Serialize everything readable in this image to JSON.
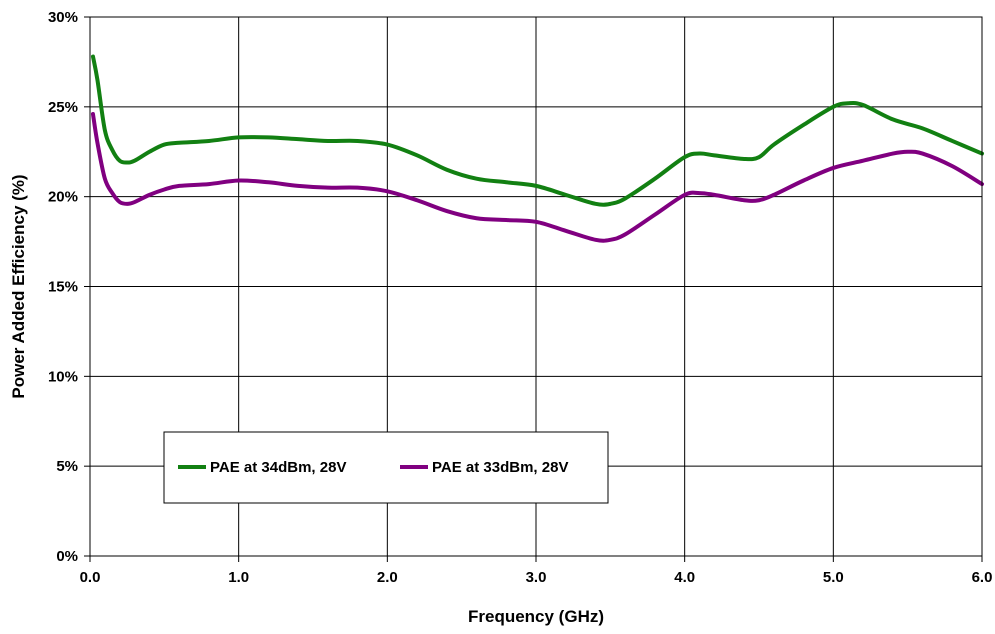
{
  "chart_data": {
    "type": "line",
    "xlabel": "Frequency (GHz)",
    "ylabel": "Power Added Efficiency (%)",
    "xlim": [
      0,
      6
    ],
    "ylim": [
      0,
      30
    ],
    "x_ticks": [
      "0.0",
      "1.0",
      "2.0",
      "3.0",
      "4.0",
      "5.0",
      "6.0"
    ],
    "y_ticks": [
      "0%",
      "5%",
      "10%",
      "15%",
      "20%",
      "25%",
      "30%"
    ],
    "grid": true,
    "legend_position": "lower-left",
    "series": [
      {
        "name": "PAE at 34dBm, 28V",
        "color": "#128012",
        "x": [
          0.02,
          0.05,
          0.1,
          0.15,
          0.2,
          0.25,
          0.3,
          0.4,
          0.5,
          0.6,
          0.8,
          1.0,
          1.2,
          1.4,
          1.6,
          1.8,
          2.0,
          2.2,
          2.4,
          2.6,
          2.8,
          3.0,
          3.2,
          3.4,
          3.5,
          3.6,
          3.8,
          4.0,
          4.1,
          4.2,
          4.4,
          4.5,
          4.6,
          4.8,
          5.0,
          5.1,
          5.2,
          5.4,
          5.6,
          5.8,
          6.0
        ],
        "y": [
          27.8,
          26.5,
          23.7,
          22.6,
          22.0,
          21.9,
          22.0,
          22.5,
          22.9,
          23.0,
          23.1,
          23.3,
          23.3,
          23.2,
          23.1,
          23.1,
          22.9,
          22.3,
          21.5,
          21.0,
          20.8,
          20.6,
          20.1,
          19.6,
          19.6,
          19.9,
          21.0,
          22.2,
          22.4,
          22.3,
          22.1,
          22.2,
          22.9,
          24.0,
          25.0,
          25.2,
          25.1,
          24.3,
          23.8,
          23.1,
          22.4
        ]
      },
      {
        "name": "PAE at 33dBm, 28V",
        "color": "#800080",
        "x": [
          0.02,
          0.05,
          0.1,
          0.15,
          0.2,
          0.25,
          0.3,
          0.4,
          0.5,
          0.6,
          0.8,
          1.0,
          1.2,
          1.4,
          1.6,
          1.8,
          2.0,
          2.2,
          2.4,
          2.6,
          2.8,
          3.0,
          3.2,
          3.4,
          3.5,
          3.6,
          3.8,
          4.0,
          4.1,
          4.2,
          4.4,
          4.5,
          4.6,
          4.8,
          5.0,
          5.2,
          5.4,
          5.5,
          5.6,
          5.8,
          6.0
        ],
        "y": [
          24.6,
          23.0,
          21.0,
          20.2,
          19.7,
          19.6,
          19.7,
          20.1,
          20.4,
          20.6,
          20.7,
          20.9,
          20.8,
          20.6,
          20.5,
          20.5,
          20.3,
          19.8,
          19.2,
          18.8,
          18.7,
          18.6,
          18.1,
          17.6,
          17.6,
          17.9,
          19.0,
          20.1,
          20.2,
          20.1,
          19.8,
          19.8,
          20.1,
          20.9,
          21.6,
          22.0,
          22.4,
          22.5,
          22.4,
          21.7,
          20.7
        ]
      }
    ]
  }
}
